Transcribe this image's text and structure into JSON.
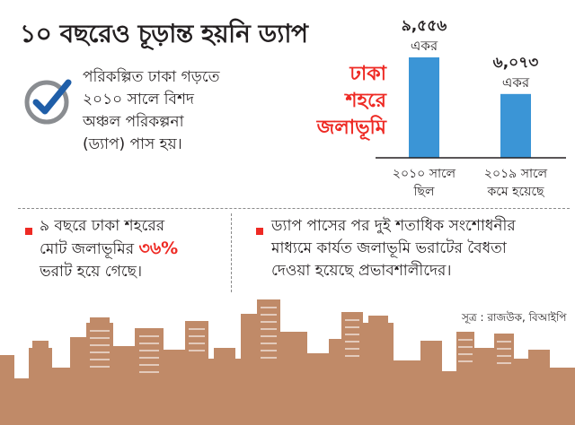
{
  "title": "১০ বছরেও চূড়ান্ত হয়নি ড্যাপ",
  "intro": {
    "lines": [
      "পরিকল্পিত ঢাকা গড়তে",
      "২০১০ সালে বিশদ",
      "অঞ্চল পরিকল্পনা",
      "(ড্যাপ) পাস হয়।"
    ],
    "icon": "checkmark-icon"
  },
  "wetland_label": [
    "ঢাকা",
    "শহরে",
    "জলাভূমি"
  ],
  "chart_data": {
    "type": "bar",
    "categories": [
      "২০১০ সালে ছিল",
      "২০১৯ সালে কমে হয়েছে"
    ],
    "category_lines": [
      [
        "২০১০ সালে",
        "ছিল"
      ],
      [
        "২০১৯ সালে",
        "কমে হয়েছে"
      ]
    ],
    "values": [
      9556,
      6073
    ],
    "value_labels": [
      "৯,৫৫৬",
      "৬,০৭৩"
    ],
    "unit_label": "একর",
    "bar_color": "#3b95d6"
  },
  "facts": {
    "fact1": {
      "line1": "৯ বছরে ঢাকা শহরের",
      "line2_prefix": "মোট জলাভূমির ",
      "line2_highlight": "৩৬%",
      "line3": "ভরাট হয়ে গেছে।"
    },
    "fact2": {
      "lines": [
        "ড্যাপ পাসের পর দুই শতাধিক সংশোধনীর",
        "মাধ্যমে কার্যত জলাভূমি ভরাটের বৈধতা",
        "দেওয়া হয়েছে প্রভাবশালীদের।"
      ]
    }
  },
  "source": "সূত্র : রাজউক, বিআইপি",
  "colors": {
    "accent_red": "#ee2a24",
    "bar_blue": "#3b95d6",
    "check_blue": "#1f5ea8",
    "skyline_brown": "#c08a68"
  }
}
